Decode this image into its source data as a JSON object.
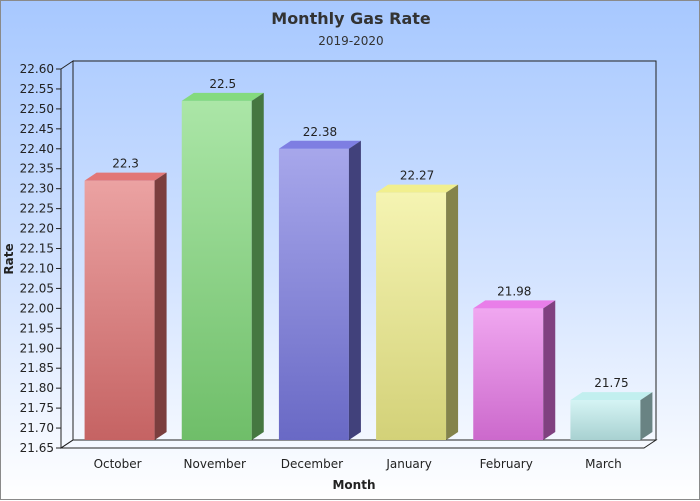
{
  "chart_data": {
    "type": "bar",
    "title": "Monthly Gas Rate",
    "subtitle": "2019-2020",
    "xlabel": "Month",
    "ylabel": "Rate",
    "categories": [
      "October",
      "November",
      "December",
      "January",
      "February",
      "March"
    ],
    "values": [
      22.3,
      22.5,
      22.38,
      22.27,
      21.98,
      21.75
    ],
    "value_labels": [
      "22.3",
      "22.5",
      "22.38",
      "22.27",
      "21.98",
      "21.75"
    ],
    "ylim": [
      21.65,
      22.6
    ],
    "yticks": [
      "21.65",
      "21.70",
      "21.75",
      "21.80",
      "21.85",
      "21.90",
      "21.95",
      "22.00",
      "22.05",
      "22.10",
      "22.15",
      "22.20",
      "22.25",
      "22.30",
      "22.35",
      "22.40",
      "22.45",
      "22.50",
      "22.55",
      "22.60"
    ],
    "colors": [
      "#e07070",
      "#7ed877",
      "#7777e0",
      "#f0ee88",
      "#e877e8",
      "#bfeeee"
    ],
    "grid": false,
    "legend": "none"
  }
}
